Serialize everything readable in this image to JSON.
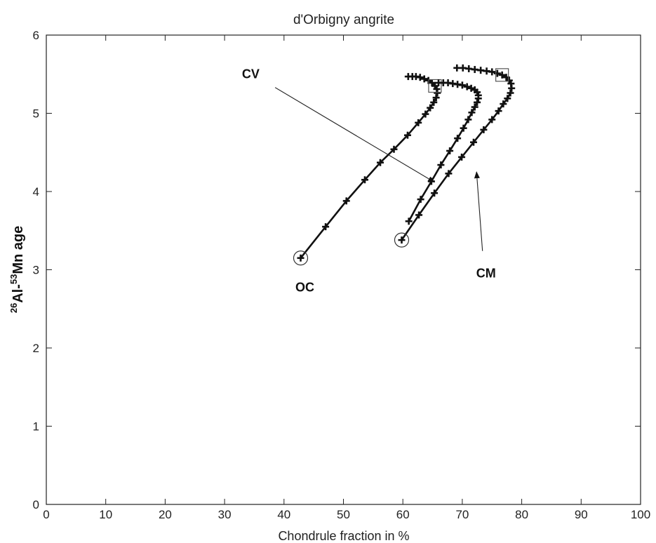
{
  "chart_data": {
    "type": "line",
    "title": "d'Orbigny angrite",
    "xlabel": "Chondrule fraction in %",
    "ylabel": {
      "parts": [
        {
          "text": "26",
          "sup": true
        },
        {
          "text": "Al-",
          "sup": false
        },
        {
          "text": "53",
          "sup": true
        },
        {
          "text": "Mn age",
          "sup": false
        }
      ]
    },
    "xlim": [
      0,
      100
    ],
    "ylim": [
      0,
      6
    ],
    "xticks": [
      0,
      10,
      20,
      30,
      40,
      50,
      60,
      70,
      80,
      90,
      100
    ],
    "yticks": [
      0,
      1,
      2,
      3,
      4,
      5,
      6
    ],
    "grid": false,
    "color": "#111111",
    "series": [
      {
        "x": [
          42.8,
          47.0,
          50.5,
          53.6,
          56.2,
          58.5,
          60.8,
          62.6,
          63.8,
          64.6,
          65.2,
          65.6,
          65.8,
          65.7,
          65.4,
          64.9,
          64.3,
          63.6,
          62.9,
          62.2,
          61.6,
          60.9
        ],
        "y": [
          3.15,
          3.55,
          3.88,
          4.15,
          4.37,
          4.54,
          4.72,
          4.88,
          4.99,
          5.07,
          5.14,
          5.2,
          5.26,
          5.31,
          5.35,
          5.39,
          5.42,
          5.44,
          5.46,
          5.47,
          5.47,
          5.47
        ],
        "start_marker": "circle",
        "box_index": 14
      },
      {
        "x": [
          61.0,
          63.0,
          64.8,
          66.4,
          67.9,
          69.2,
          70.2,
          71.0,
          71.6,
          72.1,
          72.5,
          72.7,
          72.7,
          72.5,
          72.1,
          71.5,
          70.8,
          70.0,
          69.2,
          68.4,
          67.6,
          66.8,
          66.0
        ],
        "y": [
          3.62,
          3.9,
          4.13,
          4.34,
          4.52,
          4.68,
          4.81,
          4.92,
          5.01,
          5.08,
          5.14,
          5.19,
          5.23,
          5.27,
          5.3,
          5.32,
          5.34,
          5.36,
          5.37,
          5.38,
          5.39,
          5.39,
          5.39
        ]
      },
      {
        "x": [
          59.8,
          62.7,
          65.3,
          67.7,
          69.9,
          71.9,
          73.6,
          75.0,
          76.1,
          76.9,
          77.6,
          78.1,
          78.3,
          78.2,
          77.9,
          77.4,
          76.7,
          75.9,
          75.0,
          74.1,
          73.1,
          72.1,
          71.1,
          70.1,
          69.1
        ],
        "y": [
          3.38,
          3.7,
          3.98,
          4.23,
          4.44,
          4.63,
          4.79,
          4.92,
          5.03,
          5.12,
          5.19,
          5.26,
          5.32,
          5.38,
          5.42,
          5.46,
          5.49,
          5.51,
          5.53,
          5.54,
          5.55,
          5.56,
          5.57,
          5.58,
          5.58
        ],
        "start_marker": "circle",
        "box_index": 16
      }
    ],
    "annotations": [
      {
        "text": "CV",
        "text_at": [
          34.4,
          5.45
        ],
        "arrow_from": [
          38.5,
          5.33
        ],
        "arrow_to": [
          65.3,
          4.12
        ]
      },
      {
        "text": "CM",
        "text_at": [
          74.0,
          2.9
        ],
        "arrow_from": [
          73.4,
          3.24
        ],
        "arrow_to": [
          72.4,
          4.25
        ]
      },
      {
        "text": "OC",
        "text_at": [
          43.5,
          2.72
        ]
      }
    ]
  }
}
